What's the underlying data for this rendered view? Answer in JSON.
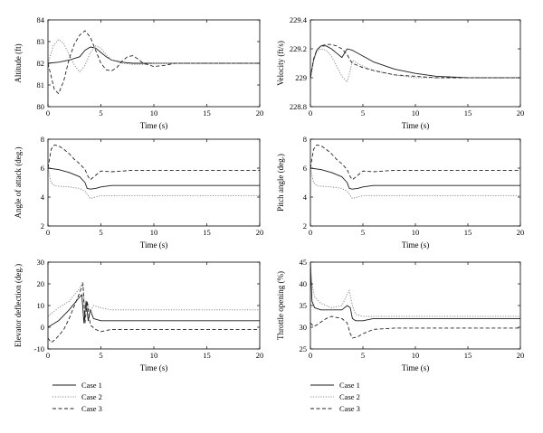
{
  "chart_data": [
    {
      "type": "line",
      "xlabel": "Time (s)",
      "ylabel": "Altitude (ft)",
      "xlim": [
        0,
        20
      ],
      "ylim": [
        80,
        84
      ],
      "xticks": [
        "0",
        "5",
        "10",
        "15",
        "20"
      ],
      "yticks": [
        "80",
        "81",
        "82",
        "83",
        "84"
      ],
      "series": [
        {
          "name": "Case 1",
          "x": [
            0,
            1,
            2,
            3,
            3.5,
            4,
            4.5,
            5,
            5.5,
            6,
            7,
            8,
            10,
            12,
            15,
            20
          ],
          "y": [
            82,
            82.05,
            82.15,
            82.3,
            82.6,
            82.75,
            82.7,
            82.5,
            82.3,
            82.15,
            82.05,
            82.0,
            82.0,
            82.0,
            82.0,
            82.0
          ]
        },
        {
          "name": "Case 2",
          "x": [
            0,
            0.5,
            1,
            1.5,
            2,
            2.5,
            3,
            3.5,
            4,
            4.5,
            5,
            5.5,
            6,
            7,
            8,
            9,
            10,
            12,
            15,
            20
          ],
          "y": [
            82,
            82.8,
            83.1,
            82.9,
            82.4,
            81.9,
            81.6,
            81.9,
            82.5,
            82.8,
            82.7,
            82.4,
            82.15,
            82.0,
            81.95,
            81.95,
            82.0,
            82.0,
            82.0,
            82.0
          ]
        },
        {
          "name": "Case 3",
          "x": [
            0,
            0.3,
            0.6,
            1,
            1.5,
            2,
            2.5,
            3,
            3.5,
            4,
            4.5,
            5,
            5.5,
            6,
            6.5,
            7,
            7.5,
            8,
            8.5,
            9,
            10,
            11,
            12,
            15,
            20
          ],
          "y": [
            82,
            81.4,
            80.8,
            80.6,
            81.2,
            82.2,
            82.9,
            83.3,
            83.5,
            83.2,
            82.6,
            82.0,
            81.7,
            81.65,
            81.8,
            82.1,
            82.3,
            82.35,
            82.2,
            82.0,
            81.85,
            81.9,
            82.0,
            82.0,
            82.0
          ]
        }
      ]
    },
    {
      "type": "line",
      "xlabel": "Time (s)",
      "ylabel": "Velocity (ft/s)",
      "xlim": [
        0,
        20
      ],
      "ylim": [
        228.8,
        229.4
      ],
      "xticks": [
        "0",
        "5",
        "10",
        "15",
        "20"
      ],
      "yticks": [
        "228.8",
        "229",
        "229.2",
        "229.4"
      ],
      "series": [
        {
          "name": "Case 1",
          "x": [
            0,
            0.3,
            0.6,
            1,
            1.5,
            2,
            2.5,
            3,
            3.5,
            4,
            5,
            6,
            8,
            10,
            12,
            15,
            20
          ],
          "y": [
            229,
            229.12,
            229.19,
            229.22,
            229.22,
            229.2,
            229.17,
            229.14,
            229.2,
            229.19,
            229.15,
            229.11,
            229.06,
            229.03,
            229.01,
            229.0,
            229.0
          ]
        },
        {
          "name": "Case 2",
          "x": [
            0,
            0.3,
            0.6,
            1,
            1.5,
            2,
            2.5,
            3,
            3.5,
            3.8,
            4,
            4.5,
            5,
            6,
            8,
            10,
            12,
            15,
            20
          ],
          "y": [
            229,
            229.12,
            229.18,
            229.2,
            229.19,
            229.15,
            229.08,
            229.01,
            228.97,
            229.05,
            229.12,
            229.1,
            229.08,
            229.05,
            229.02,
            229.0,
            229.0,
            229.0,
            229.0
          ]
        },
        {
          "name": "Case 3",
          "x": [
            0,
            0.3,
            0.6,
            1,
            1.5,
            2,
            2.5,
            3,
            3.5,
            3.8,
            4,
            5,
            6,
            8,
            10,
            12,
            15,
            20
          ],
          "y": [
            229,
            229.13,
            229.19,
            229.22,
            229.23,
            229.23,
            229.22,
            229.2,
            229.16,
            229.12,
            229.1,
            229.07,
            229.05,
            229.02,
            229.01,
            229.0,
            229.0,
            229.0
          ]
        }
      ]
    },
    {
      "type": "line",
      "xlabel": "Time (s)",
      "ylabel": "Angle of attack (deg.)",
      "xlim": [
        0,
        20
      ],
      "ylim": [
        2,
        8
      ],
      "xticks": [
        "0",
        "5",
        "10",
        "15",
        "20"
      ],
      "yticks": [
        "2",
        "4",
        "6",
        "8"
      ],
      "series": [
        {
          "name": "Case 1",
          "x": [
            0,
            1,
            2,
            3,
            3.5,
            3.7,
            4,
            4.5,
            5,
            6,
            8,
            10,
            15,
            20
          ],
          "y": [
            6.0,
            5.9,
            5.7,
            5.4,
            5.0,
            4.6,
            4.55,
            4.6,
            4.7,
            4.8,
            4.8,
            4.8,
            4.8,
            4.8
          ]
        },
        {
          "name": "Case 2",
          "x": [
            0,
            0.3,
            0.6,
            1,
            2,
            3,
            3.5,
            3.8,
            4,
            4.5,
            5,
            6,
            8,
            10,
            15,
            20
          ],
          "y": [
            6,
            5.0,
            4.8,
            4.75,
            4.7,
            4.6,
            4.4,
            4.1,
            3.9,
            4.0,
            4.1,
            4.1,
            4.1,
            4.1,
            4.1,
            4.1
          ]
        },
        {
          "name": "Case 3",
          "x": [
            0,
            0.3,
            0.6,
            1,
            1.5,
            2,
            2.5,
            3,
            3.5,
            3.8,
            4,
            4.5,
            5,
            6,
            8,
            10,
            15,
            20
          ],
          "y": [
            6,
            7.3,
            7.6,
            7.55,
            7.3,
            7.0,
            6.6,
            6.3,
            5.9,
            5.4,
            5.2,
            5.5,
            5.8,
            5.75,
            5.85,
            5.85,
            5.85,
            5.85
          ]
        }
      ]
    },
    {
      "type": "line",
      "xlabel": "Time (s)",
      "ylabel": "Pitch angle (deg.)",
      "xlim": [
        0,
        20
      ],
      "ylim": [
        2,
        8
      ],
      "xticks": [
        "0",
        "5",
        "10",
        "15",
        "20"
      ],
      "yticks": [
        "2",
        "4",
        "6",
        "8"
      ],
      "series": [
        {
          "name": "Case 1",
          "x": [
            0,
            1,
            2,
            3,
            3.5,
            3.7,
            4,
            4.5,
            5,
            6,
            8,
            10,
            15,
            20
          ],
          "y": [
            6.0,
            5.9,
            5.7,
            5.4,
            5.0,
            4.6,
            4.55,
            4.6,
            4.7,
            4.8,
            4.8,
            4.8,
            4.8,
            4.8
          ]
        },
        {
          "name": "Case 2",
          "x": [
            0,
            0.3,
            0.6,
            1,
            2,
            3,
            3.5,
            3.8,
            4,
            4.5,
            5,
            6,
            8,
            10,
            15,
            20
          ],
          "y": [
            6,
            5.0,
            4.8,
            4.75,
            4.7,
            4.6,
            4.4,
            4.1,
            3.9,
            4.0,
            4.1,
            4.1,
            4.1,
            4.1,
            4.1,
            4.1
          ]
        },
        {
          "name": "Case 3",
          "x": [
            0,
            0.3,
            0.6,
            1,
            1.5,
            2,
            2.5,
            3,
            3.5,
            3.8,
            4,
            4.5,
            5,
            6,
            8,
            10,
            15,
            20
          ],
          "y": [
            6,
            7.3,
            7.6,
            7.55,
            7.3,
            7.0,
            6.6,
            6.3,
            5.9,
            5.4,
            5.2,
            5.5,
            5.8,
            5.75,
            5.85,
            5.85,
            5.85,
            5.85
          ]
        }
      ]
    },
    {
      "type": "line",
      "xlabel": "Time (s)",
      "ylabel": "Elevator deflection (deg.)",
      "xlim": [
        0,
        20
      ],
      "ylim": [
        -10,
        30
      ],
      "xticks": [
        "0",
        "5",
        "10",
        "15",
        "20"
      ],
      "yticks": [
        "-10",
        "0",
        "10",
        "20",
        "30"
      ],
      "series": [
        {
          "name": "Case 1",
          "x": [
            0,
            1,
            2,
            3,
            3.2,
            3.4,
            3.6,
            3.8,
            4,
            4.3,
            5,
            6,
            8,
            10,
            15,
            20
          ],
          "y": [
            0,
            3,
            8,
            14,
            15,
            2,
            12,
            3,
            8,
            4,
            3,
            3,
            3,
            3,
            3,
            3
          ]
        },
        {
          "name": "Case 2",
          "x": [
            0,
            0.5,
            1,
            2,
            3,
            3.3,
            3.5,
            3.7,
            4,
            4.3,
            5,
            6,
            8,
            10,
            15,
            20
          ],
          "y": [
            5,
            7,
            9,
            12,
            18,
            21,
            6,
            12,
            7,
            10,
            9,
            8,
            8,
            8,
            8,
            8
          ]
        },
        {
          "name": "Case 3",
          "x": [
            0,
            0.3,
            0.6,
            1,
            1.5,
            2,
            3,
            3.3,
            3.5,
            3.7,
            4,
            4.5,
            5,
            6,
            8,
            10,
            15,
            20
          ],
          "y": [
            -5,
            -7,
            -6,
            -4,
            -1,
            4,
            16,
            20,
            2,
            12,
            1,
            -1,
            -2,
            -1,
            -1,
            -1,
            -1,
            -1
          ]
        }
      ]
    },
    {
      "type": "line",
      "xlabel": "Time (s)",
      "ylabel": "Throttle opening (%)",
      "xlim": [
        0,
        20
      ],
      "ylim": [
        25,
        45
      ],
      "xticks": [
        "0",
        "5",
        "10",
        "15",
        "20"
      ],
      "yticks": [
        "25",
        "30",
        "35",
        "40",
        "45"
      ],
      "series": [
        {
          "name": "Case 1",
          "x": [
            0,
            0.15,
            0.4,
            1,
            2,
            3,
            3.5,
            3.8,
            4,
            4.3,
            5,
            6,
            8,
            10,
            15,
            20
          ],
          "y": [
            45,
            36,
            34.5,
            34,
            34,
            34,
            35,
            34.5,
            32,
            31.5,
            31.5,
            32,
            32,
            32,
            32,
            32
          ]
        },
        {
          "name": "Case 2",
          "x": [
            0,
            0.15,
            0.4,
            1,
            2,
            3,
            3.4,
            3.7,
            4,
            4.3,
            5,
            6,
            8,
            10,
            15,
            20
          ],
          "y": [
            44,
            40,
            37,
            35.5,
            34.5,
            35,
            37,
            38.5,
            35,
            33,
            32.5,
            32.5,
            32.5,
            32.5,
            32.5,
            32.5
          ]
        },
        {
          "name": "Case 3",
          "x": [
            0,
            0.3,
            0.6,
            1,
            1.5,
            2,
            3,
            3.5,
            3.8,
            4,
            4.5,
            5,
            6,
            8,
            10,
            15,
            20
          ],
          "y": [
            31,
            30.2,
            30.5,
            31.2,
            32,
            32.5,
            32,
            31,
            28.5,
            27.5,
            27.8,
            28.5,
            29.5,
            29.8,
            29.8,
            29.8,
            29.8
          ]
        }
      ]
    }
  ],
  "legends": [
    {
      "position": "bottom-left",
      "entries": [
        {
          "label": "Case 1",
          "dash": "solid"
        },
        {
          "label": "Case 2",
          "dash": "dotted"
        },
        {
          "label": "Case 3",
          "dash": "dashed"
        }
      ]
    },
    {
      "position": "bottom-right",
      "entries": [
        {
          "label": "Case 1",
          "dash": "solid"
        },
        {
          "label": "Case 2",
          "dash": "dotted"
        },
        {
          "label": "Case 3",
          "dash": "dashed"
        }
      ]
    }
  ],
  "style": {
    "colors": {
      "case_1": "#1a1a1a",
      "case_2": "#8a8a8a",
      "case_3": "#222222",
      "axis": "#000000"
    }
  }
}
